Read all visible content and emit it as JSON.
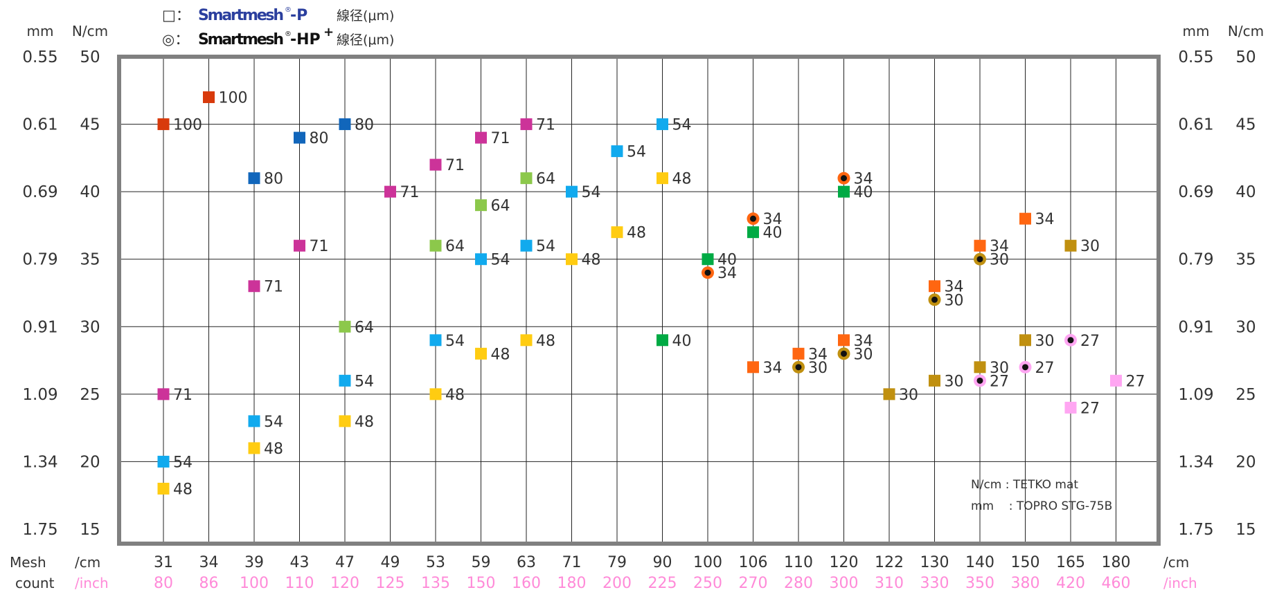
{
  "legend": {
    "p_symbol": "□：",
    "p_brand": "Smartmesh",
    "p_reg": "®",
    "p_suffix": "-P",
    "p_label": "線径(μm)",
    "hp_symbol": "◎：",
    "hp_brand": "Smartmesh",
    "hp_reg": "®",
    "hp_suffix": "-HP",
    "hp_plus": "+",
    "hp_label": "線径(μm)"
  },
  "axis_headers": {
    "mm": "mm",
    "ncm": "N/cm",
    "mesh": "Mesh",
    "count": "count",
    "per_cm": "/cm",
    "per_inch": "/inch"
  },
  "note": {
    "line1": "N/cm : TETKO mat",
    "line2": "mm    : TOPRO STG-75B"
  },
  "colors": {
    "frame": "#808080",
    "grid": "#222222",
    "inch_text": "#ff8ad8",
    "hp_ring_center": "#111111"
  },
  "chart_data": {
    "type": "scatter",
    "title": "",
    "x_categories_cm": [
      "31",
      "34",
      "39",
      "43",
      "47",
      "49",
      "53",
      "59",
      "63",
      "71",
      "79",
      "90",
      "100",
      "106",
      "110",
      "120",
      "122",
      "130",
      "140",
      "150",
      "165",
      "180"
    ],
    "x_categories_inch": [
      "80",
      "86",
      "100",
      "110",
      "120",
      "125",
      "135",
      "150",
      "160",
      "180",
      "200",
      "225",
      "250",
      "270",
      "280",
      "300",
      "310",
      "330",
      "350",
      "380",
      "420",
      "460"
    ],
    "y_ticks_ncm": [
      "50",
      "45",
      "40",
      "35",
      "30",
      "25",
      "20",
      "15"
    ],
    "y_ticks_mm": [
      "0.55",
      "0.61",
      "0.69",
      "0.79",
      "0.91",
      "1.09",
      "1.34",
      "1.75"
    ],
    "ylim": [
      15,
      50
    ],
    "grid": true,
    "series_colors": {
      "100": "#d83a0c",
      "80": "#1166bb",
      "71": "#cc3399",
      "64": "#8cc84b",
      "54": "#11aaee",
      "48": "#ffcc11",
      "40": "#00aa44",
      "34": "#ff6611",
      "30": "#c09010",
      "27": "#ffa6f2"
    },
    "smartmesh_p": [
      {
        "x": "31",
        "y": 45,
        "d": "100"
      },
      {
        "x": "31",
        "y": 25,
        "d": "71"
      },
      {
        "x": "31",
        "y": 20,
        "d": "54"
      },
      {
        "x": "31",
        "y": 18,
        "d": "48"
      },
      {
        "x": "34",
        "y": 47,
        "d": "100"
      },
      {
        "x": "39",
        "y": 41,
        "d": "80"
      },
      {
        "x": "39",
        "y": 33,
        "d": "71"
      },
      {
        "x": "39",
        "y": 23,
        "d": "54"
      },
      {
        "x": "39",
        "y": 21,
        "d": "48"
      },
      {
        "x": "43",
        "y": 44,
        "d": "80"
      },
      {
        "x": "43",
        "y": 36,
        "d": "71"
      },
      {
        "x": "47",
        "y": 45,
        "d": "80"
      },
      {
        "x": "47",
        "y": 30,
        "d": "64"
      },
      {
        "x": "47",
        "y": 26,
        "d": "54"
      },
      {
        "x": "47",
        "y": 23,
        "d": "48"
      },
      {
        "x": "49",
        "y": 40,
        "d": "71"
      },
      {
        "x": "53",
        "y": 42,
        "d": "71"
      },
      {
        "x": "53",
        "y": 36,
        "d": "64"
      },
      {
        "x": "53",
        "y": 29,
        "d": "54"
      },
      {
        "x": "53",
        "y": 25,
        "d": "48"
      },
      {
        "x": "59",
        "y": 44,
        "d": "71"
      },
      {
        "x": "59",
        "y": 39,
        "d": "64"
      },
      {
        "x": "59",
        "y": 35,
        "d": "54"
      },
      {
        "x": "59",
        "y": 28,
        "d": "48"
      },
      {
        "x": "63",
        "y": 45,
        "d": "71"
      },
      {
        "x": "63",
        "y": 41,
        "d": "64"
      },
      {
        "x": "63",
        "y": 36,
        "d": "54"
      },
      {
        "x": "63",
        "y": 29,
        "d": "48"
      },
      {
        "x": "71",
        "y": 40,
        "d": "54"
      },
      {
        "x": "71",
        "y": 35,
        "d": "48"
      },
      {
        "x": "79",
        "y": 43,
        "d": "54"
      },
      {
        "x": "79",
        "y": 37,
        "d": "48"
      },
      {
        "x": "90",
        "y": 45,
        "d": "54"
      },
      {
        "x": "90",
        "y": 41,
        "d": "48"
      },
      {
        "x": "90",
        "y": 29,
        "d": "40"
      },
      {
        "x": "100",
        "y": 35,
        "d": "40"
      },
      {
        "x": "106",
        "y": 37,
        "d": "40"
      },
      {
        "x": "106",
        "y": 27,
        "d": "34"
      },
      {
        "x": "110",
        "y": 28,
        "d": "34"
      },
      {
        "x": "120",
        "y": 40,
        "d": "40"
      },
      {
        "x": "120",
        "y": 29,
        "d": "34"
      },
      {
        "x": "122",
        "y": 25,
        "d": "30"
      },
      {
        "x": "130",
        "y": 33,
        "d": "34"
      },
      {
        "x": "130",
        "y": 26,
        "d": "30"
      },
      {
        "x": "140",
        "y": 36,
        "d": "34"
      },
      {
        "x": "140",
        "y": 27,
        "d": "30"
      },
      {
        "x": "150",
        "y": 38,
        "d": "34"
      },
      {
        "x": "150",
        "y": 29,
        "d": "30"
      },
      {
        "x": "165",
        "y": 36,
        "d": "30"
      },
      {
        "x": "165",
        "y": 24,
        "d": "27"
      },
      {
        "x": "180",
        "y": 26,
        "d": "27"
      }
    ],
    "smartmesh_hp_plus": [
      {
        "x": "100",
        "y": 34,
        "d": "34"
      },
      {
        "x": "106",
        "y": 38,
        "d": "34"
      },
      {
        "x": "110",
        "y": 27,
        "d": "30"
      },
      {
        "x": "120",
        "y": 41,
        "d": "34"
      },
      {
        "x": "120",
        "y": 28,
        "d": "30"
      },
      {
        "x": "130",
        "y": 32,
        "d": "30"
      },
      {
        "x": "140",
        "y": 35,
        "d": "30"
      },
      {
        "x": "140",
        "y": 26,
        "d": "27"
      },
      {
        "x": "150",
        "y": 27,
        "d": "27"
      },
      {
        "x": "165",
        "y": 29,
        "d": "27"
      }
    ]
  }
}
